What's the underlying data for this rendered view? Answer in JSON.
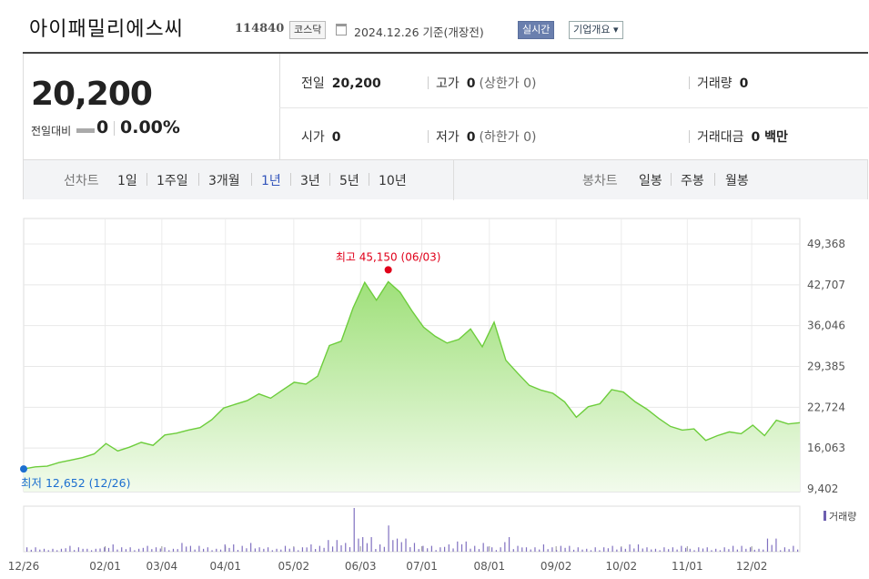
{
  "header": {
    "company_name": "아이패밀리에스씨",
    "stock_code": "114840",
    "market": "코스닥",
    "date_text": "2024.12.26 기준(개장전)",
    "realtime_label": "실시간",
    "company_info_label": "기업개요 ▾"
  },
  "summary": {
    "price": "20,200",
    "change_label": "전일대비",
    "change_value": "0",
    "change_pct": "0.00%",
    "prev_close_label": "전일",
    "prev_close": "20,200",
    "high_label": "고가",
    "high": "0",
    "upper_limit": "(상한가 0)",
    "volume_label": "거래량",
    "volume": "0",
    "open_label": "시가",
    "open": "0",
    "low_label": "저가",
    "low": "0",
    "lower_limit": "(하한가 0)",
    "amount_label": "거래대금",
    "amount": "0 백만"
  },
  "period_tabs": {
    "line_label": "선차트",
    "items": [
      "1일",
      "1주일",
      "3개월",
      "1년",
      "3년",
      "5년",
      "10년"
    ],
    "selected": "1년",
    "candle_label": "봉차트",
    "candle_items": [
      "일봉",
      "주봉",
      "월봉"
    ]
  },
  "colors": {
    "line": "#6dcd3c",
    "fill_top": "#9fe07a",
    "fill_bottom": "#f2fbec",
    "high": "#e0001a",
    "low": "#1c6fd0",
    "volume": "#8070c0"
  },
  "chart_data": {
    "type": "area",
    "title": "",
    "y_ticks": [
      49368,
      42707,
      36046,
      29385,
      22724,
      16063,
      9402
    ],
    "ylim": [
      9402,
      49368
    ],
    "x_ticks": [
      "12/26",
      "02/01",
      "03/04",
      "04/01",
      "05/02",
      "06/03",
      "07/01",
      "08/01",
      "09/02",
      "10/02",
      "11/01",
      "12/02"
    ],
    "max_annotation": "최고 45,150 (06/03)",
    "min_annotation": "최저 12,652 (12/26)",
    "volume_label": "거래량",
    "series": [
      {
        "values": [
          12652,
          13000,
          13100,
          13700,
          14100,
          14500,
          15100,
          16800,
          15600,
          16200,
          17000,
          16500,
          18200,
          18500,
          19000,
          19400,
          20700,
          22600,
          23200,
          23800,
          24900,
          24200,
          25500,
          26800,
          26500,
          27800,
          32800,
          33500,
          38900,
          43100,
          40200,
          43200,
          41500,
          38500,
          35800,
          34300,
          33200,
          33800,
          35500,
          32600,
          36600,
          30400,
          28300,
          26300,
          25500,
          25000,
          23600,
          21100,
          22800,
          23300,
          25600,
          25200,
          23600,
          22400,
          20900,
          19600,
          19000,
          19200,
          17300,
          18100,
          18700,
          18400,
          19800,
          18100,
          20600,
          20000,
          20200
        ]
      }
    ],
    "volume": [
      3,
      2,
      2,
      4,
      3,
      2,
      3,
      5,
      3,
      2,
      4,
      3,
      2,
      6,
      4,
      3,
      2,
      5,
      4,
      6,
      3,
      2,
      4,
      3,
      5,
      4,
      8,
      6,
      30,
      10,
      5,
      18,
      9,
      6,
      4,
      3,
      5,
      7,
      4,
      6,
      3,
      10,
      4,
      3,
      5,
      3,
      4,
      3,
      2,
      3,
      4,
      3,
      5,
      3,
      2,
      3,
      4,
      2,
      3,
      2,
      3,
      4,
      3,
      2,
      9,
      3,
      4
    ]
  }
}
